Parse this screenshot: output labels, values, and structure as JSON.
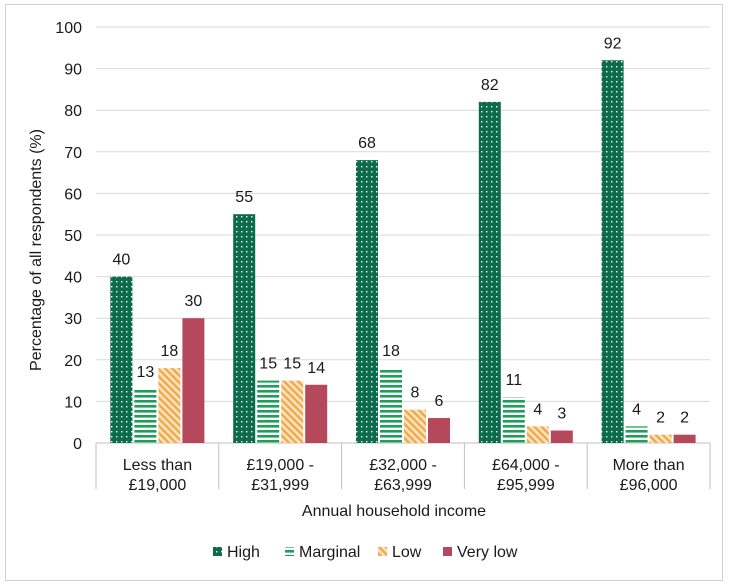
{
  "chart_data": {
    "type": "bar",
    "title": "",
    "xlabel": "Annual household income",
    "ylabel": "Percentage of all respondents (%)",
    "ylim": [
      0,
      100
    ],
    "yticks": [
      0,
      10,
      20,
      30,
      40,
      50,
      60,
      70,
      80,
      90,
      100
    ],
    "grid": true,
    "legend": "bottom",
    "categories": [
      [
        "Less than",
        "£19,000"
      ],
      [
        "£19,000 -",
        "£31,999"
      ],
      [
        "£32,000 -",
        "£63,999"
      ],
      [
        "£64,000 -",
        "£95,999"
      ],
      [
        "More than",
        "£96,000"
      ]
    ],
    "series": [
      {
        "name": "High",
        "values": [
          40,
          55,
          68,
          82,
          92
        ],
        "color": "#0b6b4b",
        "pattern": "dots"
      },
      {
        "name": "Marginal",
        "values": [
          13,
          15,
          18,
          11,
          4
        ],
        "color": "#1f9e5a",
        "pattern": "hlines"
      },
      {
        "name": "Low",
        "values": [
          18,
          15,
          8,
          4,
          2
        ],
        "color": "#f0a94a",
        "pattern": "diag"
      },
      {
        "name": "Very low",
        "values": [
          30,
          14,
          6,
          3,
          2
        ],
        "color": "#b5495b",
        "pattern": "solid"
      }
    ]
  }
}
